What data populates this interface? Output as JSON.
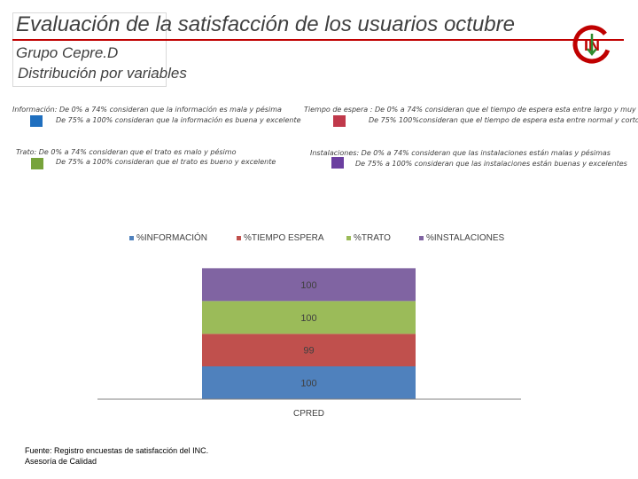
{
  "header": {
    "title": "Evaluación de la satisfacción de los usuarios octubre",
    "subtitle1": "Grupo Cepre.D",
    "subtitle2": "Distribución por variables"
  },
  "logo": {
    "text": "IN",
    "colors": {
      "ring": "#c00000",
      "text": "#c00000",
      "arrow": "#2e8b2e"
    }
  },
  "notes": {
    "informacion": {
      "line1": "Información: De 0% a 74% consideran que la información es mala y pésima",
      "line2": "De 75% a 100% consideran que la información es buena y excelente",
      "color": "#1f6fbf"
    },
    "tiempo": {
      "line1": "Tiempo de espera : De 0% a 74% consideran que el tiempo de espera esta entre largo y muy largo",
      "line2": "De 75%  100%consideran que el tiempo de espera esta entre normal y corto",
      "color": "#c0394b"
    },
    "trato": {
      "line1": "Trato: De 0% a 74% consideran que el trato es malo y pésimo",
      "line2": "De 75% a 100% consideran que el trato es bueno y excelente",
      "color": "#77a33b"
    },
    "instalaciones": {
      "line1": "Instalaciones: De 0% a 74% consideran que las instalaciones están malas y pésimas",
      "line2": "De 75% a 100% consideran que las instalaciones están buenas y excelentes",
      "color": "#6b3fa0"
    }
  },
  "footer": {
    "line1": "Fuente: Registro encuestas de satisfacción del INC.",
    "line2": "Asesoría de Calidad"
  },
  "chart_data": {
    "type": "bar",
    "stacked": true,
    "categories": [
      "CPRED"
    ],
    "series": [
      {
        "name": "%INFORMACIÓN",
        "values": [
          100
        ],
        "color": "#4f81bd"
      },
      {
        "name": "%TIEMPO ESPERA",
        "values": [
          99
        ],
        "color": "#c0504d"
      },
      {
        "name": "%TRATO",
        "values": [
          100
        ],
        "color": "#9bbb59"
      },
      {
        "name": "%INSTALACIONES",
        "values": [
          100
        ],
        "color": "#8064a2"
      }
    ],
    "ylim": [
      0,
      400
    ],
    "grid": false,
    "legend": "top",
    "data_labels": true
  }
}
